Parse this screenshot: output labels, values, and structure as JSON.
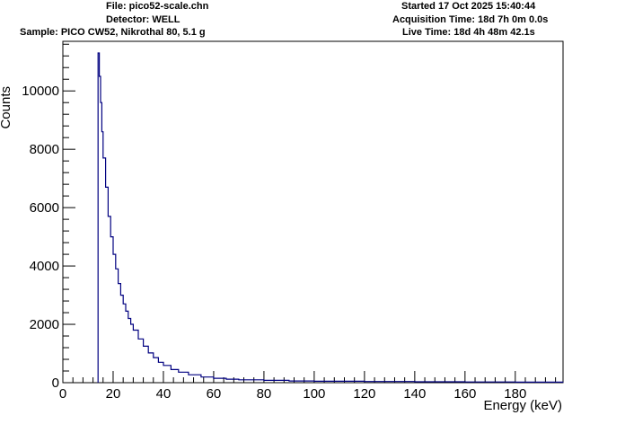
{
  "header": {
    "file": "File: pico52-scale.chn",
    "detector": "Detector: WELL",
    "sample": "Sample: PICO CW52, Nikrothal 80, 5.1 g",
    "started": "Started 17 Oct 2025 15:40:44",
    "acquisition": "Acquisition Time: 18d 7h 0m 0.0s",
    "live": "Live Time: 18d 4h 48m 42.1s"
  },
  "chart_data": {
    "type": "line",
    "style": "step-histogram",
    "title": "",
    "xlabel": "Energy (keV)",
    "ylabel": "Counts",
    "xlim": [
      0,
      199
    ],
    "ylim": [
      0,
      11700
    ],
    "x_ticks": [
      0,
      20,
      40,
      60,
      80,
      100,
      120,
      140,
      160,
      180
    ],
    "x_tick_labels": [
      "0",
      "20",
      "40",
      "60",
      "80",
      "100",
      "120",
      "140",
      "160",
      "180"
    ],
    "y_ticks": [
      0,
      2000,
      4000,
      6000,
      8000,
      10000
    ],
    "y_tick_labels": [
      "0",
      "2000",
      "4000",
      "6000",
      "8000",
      "10000"
    ],
    "grid": false,
    "line_color": "#000080",
    "series": [
      {
        "x": [
          14.0,
          14.5,
          15.0,
          15.5,
          16.0,
          17.0,
          18.0,
          19.0,
          20.0,
          21.0,
          22.0,
          23.0,
          24.0,
          25.0,
          26.0,
          27.0,
          28.0,
          30.0,
          32.0,
          34.0,
          36.0,
          38.0,
          40.0,
          43.0,
          46.0,
          50.0,
          55.0,
          60.0,
          65.0,
          70.0,
          80.0,
          90.0,
          100.0,
          120.0,
          140.0,
          160.0,
          180.0,
          199.0
        ],
        "y": [
          11300,
          10500,
          9600,
          8600,
          7700,
          6700,
          5700,
          5000,
          4400,
          3900,
          3400,
          3000,
          2700,
          2450,
          2200,
          2000,
          1800,
          1500,
          1250,
          1020,
          860,
          700,
          590,
          450,
          360,
          270,
          195,
          150,
          120,
          100,
          80,
          60,
          50,
          40,
          30,
          25,
          20,
          15
        ]
      }
    ]
  }
}
